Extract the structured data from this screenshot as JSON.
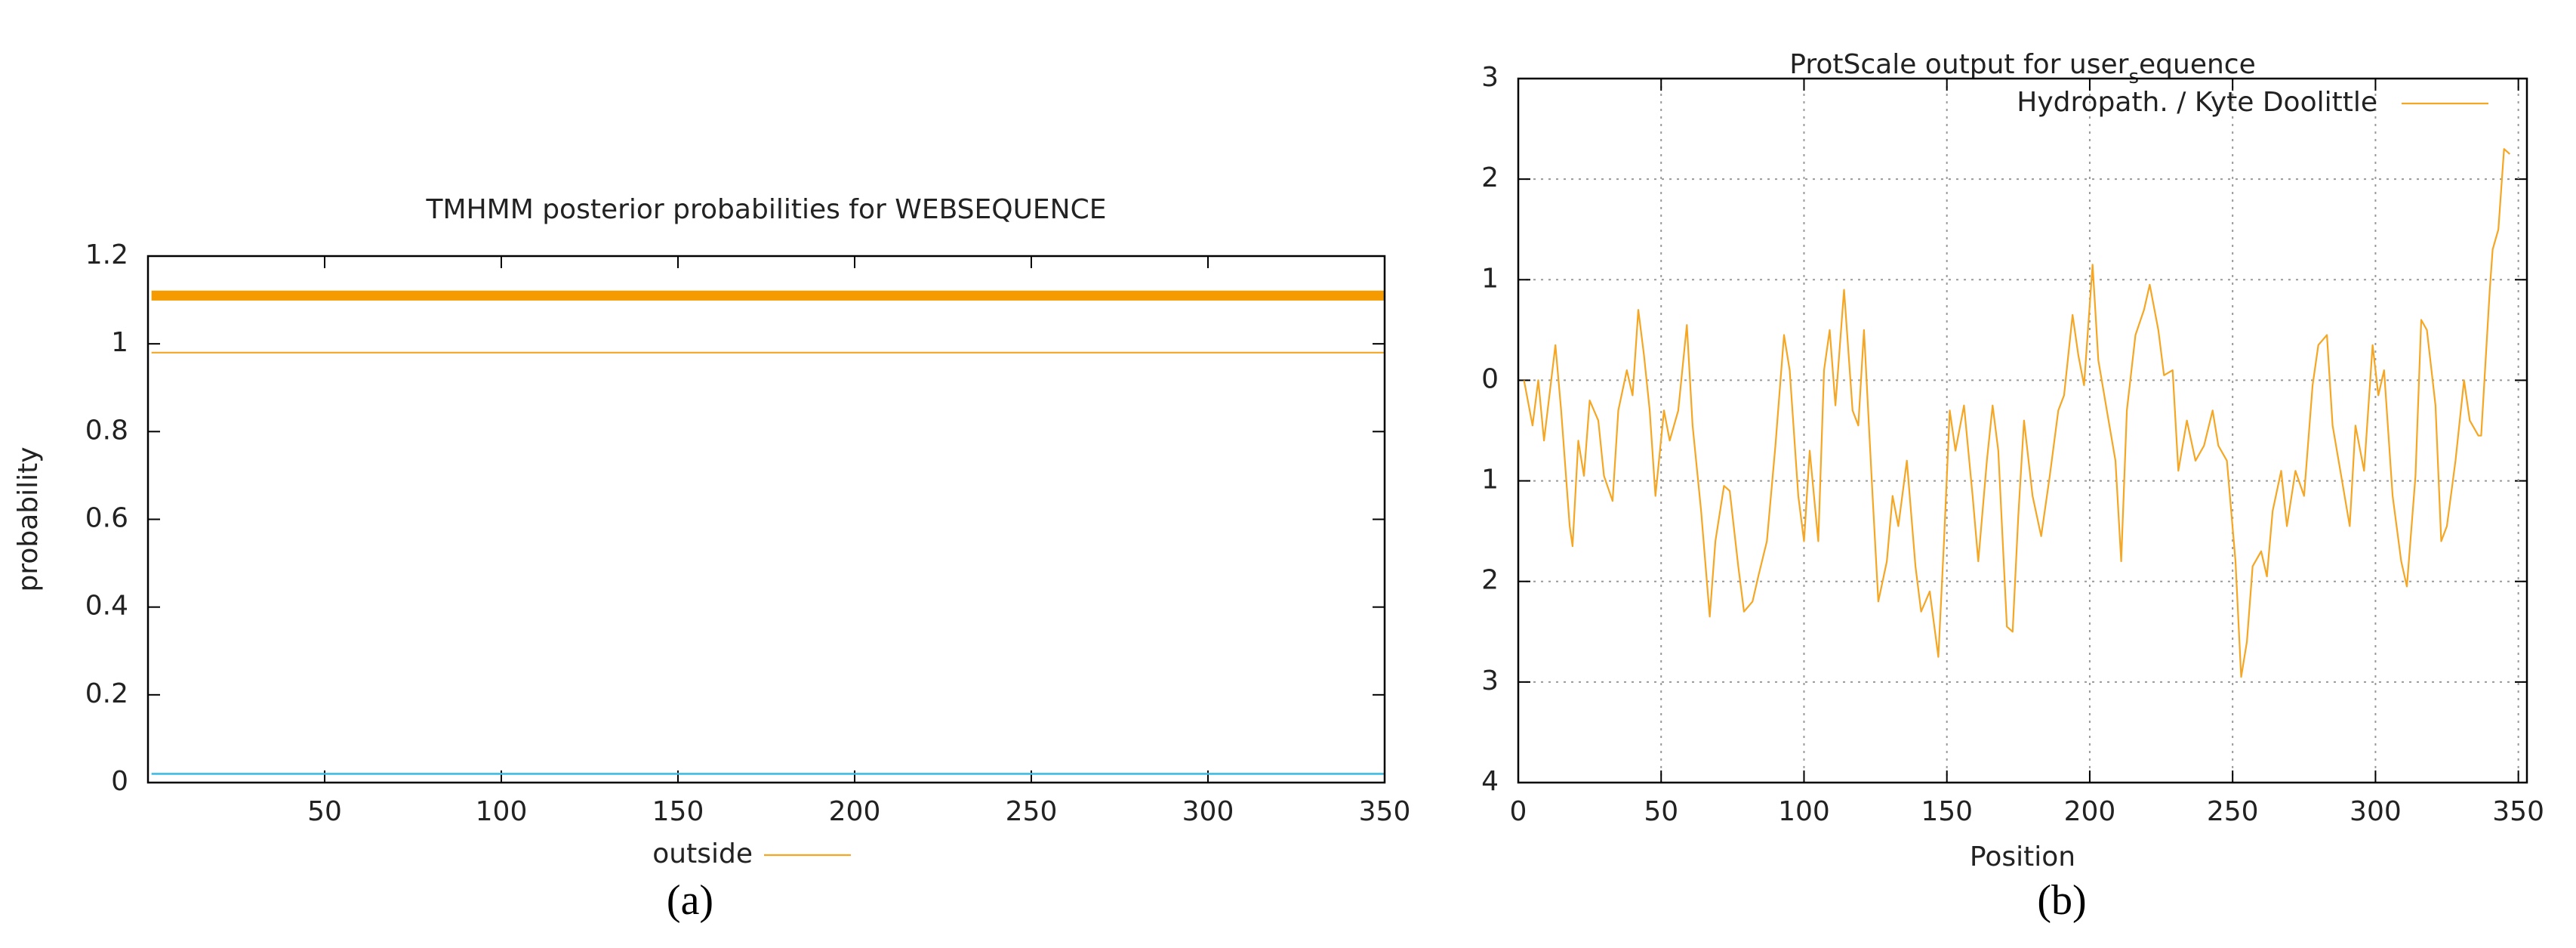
{
  "chart_data": [
    {
      "type": "line",
      "title": "TMHMM posterior probabilities for WEBSEQUENCE",
      "ylabel": "probability",
      "caption": "(a)",
      "xlim": [
        0,
        350
      ],
      "xticks": [
        50,
        100,
        150,
        200,
        250,
        300,
        350
      ],
      "ylim": [
        0,
        1.2
      ],
      "yticks": [
        0,
        0.2,
        0.4,
        0.6,
        0.8,
        1,
        1.2
      ],
      "grid": false,
      "legend": "bottom",
      "series": [
        {
          "color": "#f59b00",
          "linewidth": 6,
          "x": [
            1,
            350
          ],
          "values": [
            1.11,
            1.11
          ]
        },
        {
          "name": "outside",
          "color": "#f5a623",
          "linewidth": 1,
          "x": [
            1,
            350
          ],
          "values": [
            0.98,
            0.98
          ]
        },
        {
          "color": "#3cbde6",
          "linewidth": 1.2,
          "x": [
            1,
            350
          ],
          "values": [
            0.02,
            0.02
          ]
        }
      ]
    },
    {
      "type": "line",
      "title_parts": [
        "ProtScale output for user",
        "s",
        "equence"
      ],
      "xlabel": "Position",
      "caption": "(b)",
      "xlim": [
        0,
        353
      ],
      "xticks": [
        0,
        50,
        100,
        150,
        200,
        250,
        300,
        350
      ],
      "ylim": [
        -4,
        3
      ],
      "yticks": [
        {
          "value": -4,
          "label": "4"
        },
        {
          "value": -3,
          "label": "3"
        },
        {
          "value": -2,
          "label": "2"
        },
        {
          "value": -1,
          "label": "1"
        },
        0,
        1,
        2,
        3
      ],
      "grid": true,
      "legend": "upper right",
      "series": [
        {
          "name": "Hydropath. / Kyte  Doolittle",
          "color": "#f5a623",
          "linewidth": 1,
          "x": [
            2,
            5,
            7,
            9,
            13,
            15,
            18,
            19,
            21,
            23,
            25,
            28,
            30,
            33,
            35,
            38,
            40,
            42,
            44,
            46,
            48,
            51,
            53,
            56,
            59,
            61,
            64,
            67,
            69,
            72,
            74,
            77,
            79,
            82,
            84,
            87,
            90,
            93,
            95,
            98,
            100,
            102,
            105,
            107,
            109,
            111,
            114,
            117,
            119,
            121,
            124,
            126,
            129,
            131,
            133,
            136,
            139,
            141,
            144,
            147,
            149,
            151,
            153,
            156,
            159,
            161,
            164,
            166,
            168,
            171,
            173,
            175,
            177,
            180,
            183,
            186,
            189,
            191,
            194,
            196,
            198,
            201,
            203,
            206,
            209,
            211,
            213,
            216,
            219,
            221,
            224,
            226,
            229,
            231,
            234,
            237,
            240,
            243,
            245,
            248,
            251,
            253,
            255,
            257,
            260,
            262,
            264,
            267,
            269,
            272,
            275,
            278,
            280,
            283,
            285,
            288,
            291,
            293,
            296,
            299,
            301,
            303,
            306,
            309,
            311,
            314,
            316,
            318,
            321,
            323,
            325,
            328,
            331,
            333,
            336,
            337,
            340,
            341,
            343,
            345,
            347
          ],
          "values": [
            0,
            -0.45,
            0,
            -0.6,
            0.35,
            -0.3,
            -1.45,
            -1.65,
            -0.6,
            -0.95,
            -0.2,
            -0.4,
            -0.95,
            -1.2,
            -0.3,
            0.1,
            -0.15,
            0.7,
            0.25,
            -0.3,
            -1.15,
            -0.3,
            -0.6,
            -0.3,
            0.55,
            -0.45,
            -1.3,
            -2.35,
            -1.6,
            -1.05,
            -1.1,
            -1.85,
            -2.3,
            -2.2,
            -1.95,
            -1.6,
            -0.65,
            0.45,
            0.1,
            -1.15,
            -1.6,
            -0.7,
            -1.6,
            0.1,
            0.5,
            -0.25,
            0.9,
            -0.3,
            -0.45,
            0.5,
            -1.15,
            -2.2,
            -1.8,
            -1.15,
            -1.45,
            -0.8,
            -1.85,
            -2.3,
            -2.1,
            -2.75,
            -1.6,
            -0.3,
            -0.7,
            -0.25,
            -1.15,
            -1.8,
            -0.8,
            -0.25,
            -0.7,
            -2.45,
            -2.5,
            -1.35,
            -0.4,
            -1.15,
            -1.55,
            -0.95,
            -0.3,
            -0.15,
            0.65,
            0.25,
            -0.05,
            1.15,
            0.2,
            -0.3,
            -0.8,
            -1.8,
            -0.3,
            0.45,
            0.7,
            0.95,
            0.5,
            0.05,
            0.1,
            -0.9,
            -0.4,
            -0.8,
            -0.65,
            -0.3,
            -0.65,
            -0.8,
            -1.8,
            -2.95,
            -2.6,
            -1.85,
            -1.7,
            -1.95,
            -1.3,
            -0.9,
            -1.45,
            -0.9,
            -1.15,
            -0.05,
            0.35,
            0.45,
            -0.45,
            -0.95,
            -1.45,
            -0.45,
            -0.9,
            0.35,
            -0.15,
            0.1,
            -1.15,
            -1.8,
            -2.05,
            -0.95,
            0.6,
            0.5,
            -0.25,
            -1.6,
            -1.45,
            -0.8,
            0,
            -0.4,
            -0.55,
            -0.55,
            0.9,
            1.3,
            1.5,
            2.3,
            2.25
          ]
        }
      ]
    }
  ]
}
